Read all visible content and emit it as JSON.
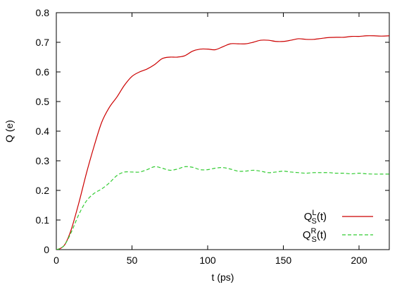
{
  "chart_data": {
    "type": "line",
    "title": "",
    "xlabel": "t (ps)",
    "ylabel": "Q (e)",
    "xlim": [
      0,
      220
    ],
    "ylim": [
      0,
      0.8
    ],
    "xticks": [
      0,
      50,
      100,
      150,
      200
    ],
    "yticks": [
      0,
      0.1,
      0.2,
      0.3,
      0.4,
      0.5,
      0.6,
      0.7,
      0.8
    ],
    "xtick_labels": [
      "0",
      "50",
      "100",
      "150",
      "200"
    ],
    "ytick_labels": [
      "0",
      "0.1",
      "0.2",
      "0.3",
      "0.4",
      "0.5",
      "0.6",
      "0.7",
      "0.8"
    ],
    "grid": false,
    "legend_position": "bottom-right",
    "series": [
      {
        "name": "Q_S^L(t)",
        "legend": {
          "base": "Q",
          "sup": "L",
          "sub": "S",
          "suffix": "(t)"
        },
        "color": "#cc0000",
        "style": "solid",
        "x": [
          0,
          3,
          6,
          10,
          15,
          20,
          25,
          30,
          35,
          40,
          45,
          50,
          55,
          60,
          65,
          70,
          75,
          80,
          85,
          90,
          95,
          100,
          105,
          110,
          115,
          120,
          125,
          130,
          135,
          140,
          145,
          150,
          155,
          160,
          165,
          170,
          175,
          180,
          185,
          190,
          195,
          200,
          205,
          210,
          215,
          220
        ],
        "y": [
          0,
          0.005,
          0.02,
          0.07,
          0.16,
          0.26,
          0.35,
          0.43,
          0.48,
          0.515,
          0.555,
          0.585,
          0.6,
          0.61,
          0.625,
          0.645,
          0.65,
          0.65,
          0.655,
          0.67,
          0.677,
          0.677,
          0.675,
          0.685,
          0.695,
          0.695,
          0.695,
          0.7,
          0.707,
          0.707,
          0.703,
          0.703,
          0.707,
          0.712,
          0.71,
          0.71,
          0.713,
          0.716,
          0.717,
          0.717,
          0.72,
          0.72,
          0.722,
          0.722,
          0.721,
          0.722
        ]
      },
      {
        "name": "Q_S^R(t)",
        "legend": {
          "base": "Q",
          "sup": "R",
          "sub": "S",
          "suffix": "(t)"
        },
        "color": "#33cc33",
        "style": "dashed",
        "x": [
          0,
          3,
          6,
          10,
          15,
          20,
          25,
          30,
          35,
          40,
          45,
          50,
          55,
          60,
          65,
          70,
          75,
          80,
          85,
          90,
          95,
          100,
          105,
          110,
          115,
          120,
          125,
          130,
          135,
          140,
          145,
          150,
          155,
          160,
          165,
          170,
          175,
          180,
          185,
          190,
          195,
          200,
          205,
          210,
          215,
          220
        ],
        "y": [
          0,
          0.005,
          0.02,
          0.06,
          0.12,
          0.165,
          0.19,
          0.205,
          0.225,
          0.25,
          0.262,
          0.262,
          0.262,
          0.27,
          0.28,
          0.275,
          0.268,
          0.272,
          0.28,
          0.278,
          0.27,
          0.27,
          0.275,
          0.277,
          0.272,
          0.265,
          0.265,
          0.268,
          0.265,
          0.26,
          0.262,
          0.265,
          0.262,
          0.26,
          0.258,
          0.26,
          0.26,
          0.26,
          0.258,
          0.258,
          0.256,
          0.258,
          0.256,
          0.255,
          0.255,
          0.255
        ]
      }
    ]
  }
}
